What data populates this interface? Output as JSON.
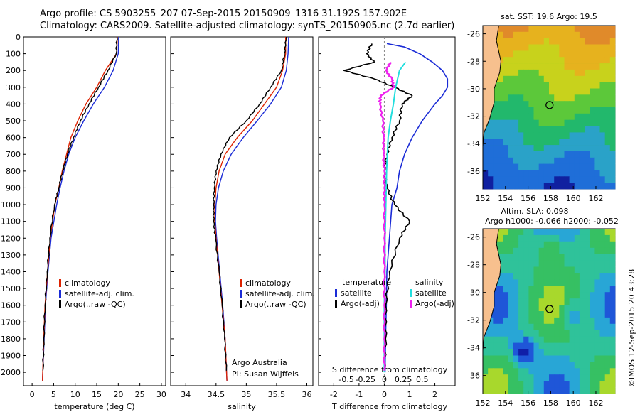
{
  "header": {
    "line1": "Argo profile: CS 5903255_207 07-Sep-2015 20150909_1316 31.192S 157.902E",
    "line2": "Climatology: CARS2009. Satellite-adjusted climatology: synTS_20150905.nc (2.7d earlier)"
  },
  "colors": {
    "climatology": "#dd2200",
    "satellite": "#1a2bd6",
    "argo": "#000000",
    "cyan": "#22dede",
    "magenta": "#ee22ee"
  },
  "chart_data": [
    {
      "type": "line",
      "title": "",
      "xlabel": "temperature (deg C)",
      "ylabel": "",
      "xlim": [
        -2,
        31
      ],
      "ylim": [
        2080,
        0
      ],
      "x_ticks": [
        "0",
        "5",
        "10",
        "15",
        "20",
        "25",
        "30"
      ],
      "y_ticks": [
        "0",
        "100",
        "200",
        "300",
        "400",
        "500",
        "600",
        "700",
        "800",
        "900",
        "1000",
        "1100",
        "1200",
        "1300",
        "1400",
        "1500",
        "1600",
        "1700",
        "1800",
        "1900",
        "2000"
      ],
      "legend": [
        "climatology",
        "satellite-adj. clim.",
        "Argo(..raw -QC)"
      ],
      "series": [
        {
          "name": "climatology",
          "depth": [
            0,
            100,
            200,
            300,
            400,
            500,
            600,
            700,
            800,
            900,
            1000,
            1200,
            1400,
            1600,
            1800,
            2050
          ],
          "values": [
            19.8,
            19.6,
            17.0,
            15.0,
            12.5,
            10.6,
            9.0,
            8.0,
            7.0,
            6.2,
            5.3,
            4.2,
            3.6,
            3.0,
            2.7,
            2.4
          ]
        },
        {
          "name": "satellite-adj. clim.",
          "depth": [
            0,
            100,
            200,
            300,
            400,
            500,
            600,
            700,
            800,
            900,
            1000,
            1200,
            1400,
            1600,
            1800,
            2050
          ],
          "values": [
            20.1,
            20.0,
            18.8,
            16.8,
            14.2,
            12.0,
            10.0,
            8.5,
            7.4,
            6.5,
            5.7,
            4.4,
            3.7,
            3.1,
            2.8,
            2.4
          ]
        },
        {
          "name": "Argo(..raw -QC)",
          "depth": [
            0,
            100,
            200,
            300,
            400,
            500,
            600,
            700,
            800,
            900,
            1000,
            1200,
            1400,
            1600,
            1800,
            1990
          ],
          "values": [
            19.7,
            19.5,
            17.6,
            15.4,
            13.2,
            11.2,
            9.6,
            8.2,
            7.1,
            6.2,
            5.2,
            4.1,
            3.5,
            3.0,
            2.7,
            2.5
          ]
        }
      ]
    },
    {
      "type": "line",
      "xlabel": "salinity",
      "xlim": [
        33.75,
        36.1
      ],
      "ylim": [
        2080,
        0
      ],
      "x_ticks": [
        "34",
        "34.5",
        "35",
        "35.5",
        "36"
      ],
      "legend": [
        "climatology",
        "satellite-adj. clim.",
        "Argo(..raw -QC)"
      ],
      "annotation": [
        "Argo Australia",
        "PI: Susan Wijffels"
      ],
      "series": [
        {
          "name": "climatology",
          "depth": [
            0,
            100,
            200,
            300,
            400,
            500,
            600,
            700,
            800,
            900,
            1000,
            1100,
            1200,
            1400,
            1600,
            1800,
            2050
          ],
          "values": [
            35.65,
            35.65,
            35.6,
            35.5,
            35.3,
            35.1,
            34.85,
            34.65,
            34.55,
            34.5,
            34.48,
            34.48,
            34.5,
            34.55,
            34.6,
            34.65,
            34.68
          ]
        },
        {
          "name": "satellite-adj. clim.",
          "depth": [
            0,
            100,
            200,
            300,
            400,
            500,
            600,
            700,
            800,
            900,
            1000,
            1100,
            1200,
            1400,
            1600,
            1800,
            2050
          ],
          "values": [
            35.7,
            35.69,
            35.66,
            35.58,
            35.4,
            35.18,
            34.95,
            34.75,
            34.62,
            34.54,
            34.5,
            34.49,
            34.51,
            34.56,
            34.61,
            34.65,
            34.68
          ]
        },
        {
          "name": "Argo(..raw -QC)",
          "depth": [
            0,
            100,
            200,
            300,
            400,
            500,
            600,
            700,
            800,
            900,
            1000,
            1100,
            1200,
            1400,
            1600,
            1800,
            1990
          ],
          "values": [
            35.66,
            35.63,
            35.58,
            35.4,
            35.22,
            35.0,
            34.72,
            34.58,
            34.5,
            34.47,
            34.46,
            34.46,
            34.49,
            34.55,
            34.6,
            34.64,
            34.67
          ]
        }
      ]
    },
    {
      "type": "line",
      "xlabel": "T difference from climatology",
      "xlabel_top": "S difference from climatology",
      "xlim": [
        -2.6,
        2.8
      ],
      "ylim": [
        2080,
        0
      ],
      "x_ticks": [
        "-2",
        "-1",
        "0",
        "1",
        "2"
      ],
      "x_ticks_S": [
        "-0.5",
        "-0.25",
        "0",
        "0.25",
        "0.5"
      ],
      "legend_left_title": "temperature",
      "legend_right_title": "salinity",
      "legend": [
        "satellite",
        "Argo(-adj)",
        "satellite",
        "Argo(-adj)"
      ],
      "series": [
        {
          "name": "temperature satellite",
          "depth": [
            40,
            60,
            100,
            150,
            200,
            250,
            300,
            350,
            400,
            500,
            600,
            700,
            800,
            900,
            1000,
            1200,
            1400,
            1600,
            1800,
            2000
          ],
          "values": [
            0.1,
            0.8,
            1.4,
            1.9,
            2.3,
            2.5,
            2.5,
            2.3,
            2.0,
            1.5,
            1.1,
            0.8,
            0.6,
            0.5,
            0.3,
            0.2,
            0.1,
            0.08,
            0.05,
            0.03
          ]
        },
        {
          "name": "temperature Argo(-adj)",
          "depth": [
            40,
            100,
            150,
            200,
            250,
            300,
            350,
            400,
            500,
            600,
            700,
            800,
            900,
            1000,
            1100,
            1200,
            1400,
            1600,
            1800,
            1990
          ],
          "values": [
            -0.5,
            -0.7,
            -0.4,
            -1.6,
            -0.4,
            0.4,
            1.1,
            0.7,
            0.6,
            0.3,
            0.1,
            0.0,
            0.1,
            0.4,
            1.0,
            0.6,
            0.2,
            0.05,
            0.05,
            0.0
          ]
        },
        {
          "name": "salinity satellite",
          "depth": [
            150,
            200,
            300,
            400,
            500,
            600,
            800,
            1000,
            1200,
            1400,
            1600,
            1800,
            2000
          ],
          "values": [
            0.28,
            0.2,
            0.15,
            0.12,
            0.08,
            0.05,
            0.03,
            0.02,
            0.01,
            0.01,
            0.0,
            0.0,
            0.0
          ]
        },
        {
          "name": "salinity Argo(-adj)",
          "depth": [
            150,
            200,
            250,
            300,
            350,
            400,
            500,
            600,
            700,
            800,
            900,
            1000,
            1200,
            1400,
            1600,
            1800,
            1990
          ],
          "values": [
            0.08,
            0.02,
            0.1,
            0.12,
            -0.05,
            -0.06,
            -0.02,
            -0.01,
            -0.01,
            0.0,
            0.0,
            0.0,
            0.0,
            0.0,
            0.0,
            0.0,
            0.0
          ]
        }
      ]
    },
    {
      "type": "heatmap",
      "title": "sat. SST: 19.6 Argo: 19.5",
      "x_ticks": [
        "152",
        "154",
        "156",
        "158",
        "160",
        "162"
      ],
      "y_ticks": [
        "-26",
        "-28",
        "-30",
        "-32",
        "-34",
        "-36"
      ],
      "xlim": [
        152,
        163.7
      ],
      "ylim": [
        -37.3,
        -25.4
      ],
      "argo_position": {
        "lon": 157.9,
        "lat": -31.19
      }
    },
    {
      "type": "heatmap",
      "title": "Altim. SLA: 0.098",
      "subtitle": "Argo h1000: -0.066 h2000: -0.052",
      "x_ticks": [
        "152",
        "154",
        "156",
        "158",
        "160",
        "162"
      ],
      "y_ticks": [
        "-26",
        "-28",
        "-30",
        "-32",
        "-34",
        "-36"
      ],
      "xlim": [
        152,
        163.7
      ],
      "ylim": [
        -37.3,
        -25.4
      ],
      "argo_position": {
        "lon": 157.9,
        "lat": -31.19
      }
    }
  ],
  "side_label": "©IMOS 12-Sep-2015 20:43:28"
}
